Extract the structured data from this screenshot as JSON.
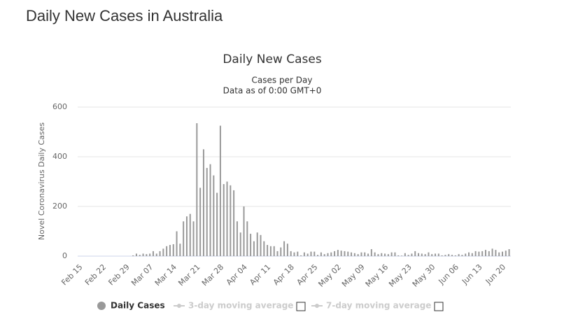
{
  "page_title": "Daily New Cases in Australia",
  "chart_data": {
    "type": "bar",
    "title": "Daily New Cases",
    "subtitle": [
      "Cases per Day",
      "Data as of 0:00 GMT+0"
    ],
    "y_axis_label": "Novel Coronavirus Daily Cases",
    "categories": [
      "Feb 15",
      null,
      null,
      null,
      null,
      null,
      null,
      "Feb 22",
      null,
      null,
      null,
      null,
      null,
      null,
      "Feb 29",
      null,
      null,
      null,
      null,
      null,
      null,
      "Mar 07",
      null,
      null,
      null,
      null,
      null,
      null,
      "Mar 14",
      null,
      null,
      null,
      null,
      null,
      null,
      "Mar 21",
      null,
      null,
      null,
      null,
      null,
      null,
      "Mar 28",
      null,
      null,
      null,
      null,
      null,
      null,
      "Apr 04",
      null,
      null,
      null,
      null,
      null,
      null,
      "Apr 11",
      null,
      null,
      null,
      null,
      null,
      null,
      "Apr 18",
      null,
      null,
      null,
      null,
      null,
      null,
      "Apr 25",
      null,
      null,
      null,
      null,
      null,
      null,
      "May 02",
      null,
      null,
      null,
      null,
      null,
      null,
      "May 09",
      null,
      null,
      null,
      null,
      null,
      null,
      "May 16",
      null,
      null,
      null,
      null,
      null,
      null,
      "May 23",
      null,
      null,
      null,
      null,
      null,
      null,
      "May 30",
      null,
      null,
      null,
      null,
      null,
      null,
      "Jun 06",
      null,
      null,
      null,
      null,
      null,
      null,
      "Jun 13",
      null,
      null,
      null,
      null,
      null,
      null,
      "Jun 20",
      null,
      null
    ],
    "series": [
      {
        "name": "Daily Cases",
        "color": "#999999",
        "values": [
          0,
          0,
          0,
          0,
          0,
          0,
          0,
          0,
          0,
          0,
          0,
          0,
          0,
          0,
          0,
          0,
          3,
          10,
          5,
          10,
          8,
          10,
          20,
          10,
          20,
          30,
          40,
          45,
          48,
          100,
          50,
          140,
          160,
          170,
          140,
          535,
          275,
          430,
          355,
          370,
          325,
          255,
          525,
          290,
          300,
          285,
          265,
          140,
          95,
          200,
          140,
          90,
          60,
          95,
          85,
          60,
          45,
          40,
          40,
          20,
          35,
          60,
          50,
          20,
          15,
          18,
          3,
          15,
          10,
          18,
          18,
          5,
          15,
          8,
          12,
          15,
          20,
          25,
          22,
          20,
          18,
          15,
          12,
          8,
          15,
          15,
          10,
          28,
          15,
          8,
          12,
          10,
          8,
          15,
          15,
          3,
          2,
          12,
          5,
          10,
          20,
          12,
          10,
          8,
          15,
          8,
          10,
          10,
          3,
          5,
          8,
          5,
          3,
          8,
          5,
          10,
          15,
          12,
          20,
          18,
          20,
          25,
          20,
          30,
          25,
          15,
          18,
          22,
          28
        ]
      }
    ],
    "inactive_series": [
      "3-day moving average",
      "7-day moving average"
    ],
    "ylim": [
      0,
      600
    ],
    "yticks": [
      0,
      200,
      400,
      600
    ],
    "grid": true
  }
}
